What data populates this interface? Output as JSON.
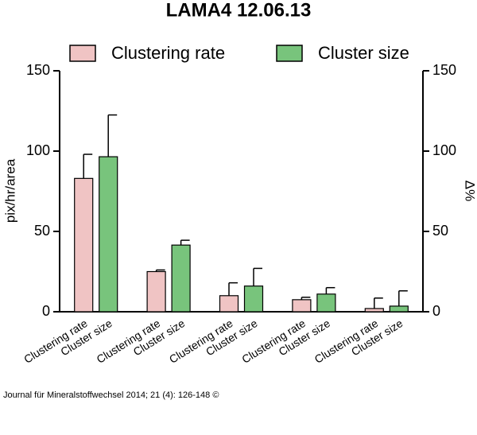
{
  "chart_data": {
    "type": "bar",
    "title": "LAMA4 12.06.13",
    "ylabel": "pix/hr/area",
    "y2label": "Δ%",
    "categories": [
      null,
      null,
      null,
      null,
      null
    ],
    "series": [
      {
        "name": "Clustering rate",
        "color": "#f0c4c4",
        "values": [
          83,
          25,
          10,
          7.5,
          2
        ],
        "errors": [
          15,
          1,
          8,
          1.5,
          6.5
        ]
      },
      {
        "name": "Cluster size",
        "color": "#78c47c",
        "axis": "y2",
        "values": [
          96.5,
          41.5,
          16,
          11,
          3.5
        ],
        "errors": [
          26,
          3,
          11,
          4,
          9.5
        ]
      }
    ],
    "ylim": [
      0,
      150
    ],
    "yticks": [
      0,
      50,
      100,
      150
    ],
    "y2lim": [
      0,
      150
    ],
    "y2ticks": [
      0,
      50,
      100,
      150
    ],
    "legend": "top",
    "source": "Journal für Mineralstoffwechsel 2014; 21 (4): 126-148 ©"
  }
}
